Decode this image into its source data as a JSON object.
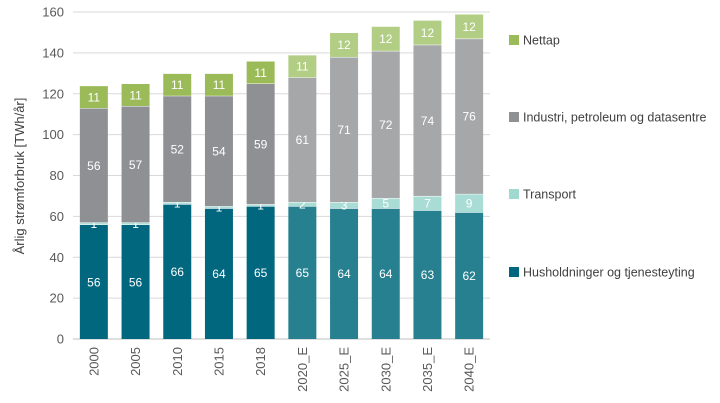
{
  "chart_data": {
    "type": "bar",
    "stacked": true,
    "title": "",
    "xlabel": "",
    "ylabel": "Årlig strømforbruk [TWh/år]",
    "ylim": [
      0,
      160
    ],
    "yticks": [
      0,
      20,
      40,
      60,
      80,
      100,
      120,
      140,
      160
    ],
    "grid": true,
    "legend_position": "right",
    "categories": [
      "2000",
      "2005",
      "2010",
      "2015",
      "2018",
      "2020_E",
      "2025_E",
      "2030_E",
      "2035_E",
      "2040_E"
    ],
    "series": [
      {
        "name": "Husholdninger og tjenesteyting",
        "values": [
          56,
          56,
          66,
          64,
          65,
          65,
          64,
          64,
          63,
          62
        ],
        "colors": [
          "#00677f",
          "#00677f",
          "#00677f",
          "#00677f",
          "#00677f",
          "#26808f",
          "#26808f",
          "#26808f",
          "#26808f",
          "#26808f"
        ],
        "legend_color": "#00677f"
      },
      {
        "name": "Transport",
        "values": [
          1,
          1,
          1,
          1,
          1,
          2,
          3,
          5,
          7,
          9
        ],
        "colors": [
          "#b2dfdb",
          "#b2dfdb",
          "#b2dfdb",
          "#b2dfdb",
          "#b2dfdb",
          "#a9dcd5",
          "#a9dcd5",
          "#a9dcd5",
          "#a9dcd5",
          "#a9dcd5"
        ],
        "legend_color": "#9fd9cf"
      },
      {
        "name": "Industri, petroleum og datasentre",
        "values": [
          56,
          57,
          52,
          54,
          59,
          61,
          71,
          72,
          74,
          76
        ],
        "colors": [
          "#8f9093",
          "#8f9093",
          "#8f9093",
          "#8f9093",
          "#8f9093",
          "#a6a7a9",
          "#a6a7a9",
          "#a6a7a9",
          "#a6a7a9",
          "#a6a7a9"
        ],
        "legend_color": "#8f9093"
      },
      {
        "name": "Nettap",
        "values": [
          11,
          11,
          11,
          11,
          11,
          11,
          12,
          12,
          12,
          12
        ],
        "colors": [
          "#9bbb59",
          "#9bbb59",
          "#9bbb59",
          "#9bbb59",
          "#9bbb59",
          "#b2ce84",
          "#b2ce84",
          "#b2ce84",
          "#b2ce84",
          "#b2ce84"
        ],
        "legend_color": "#9bbb59"
      }
    ]
  }
}
